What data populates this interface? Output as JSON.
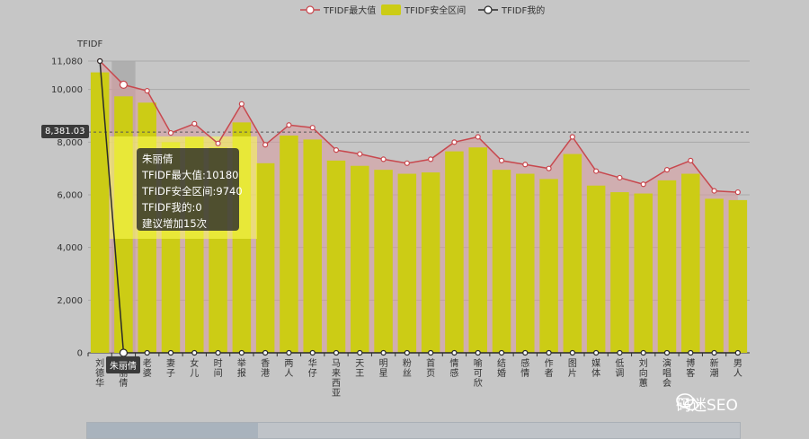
{
  "chart_data": {
    "type": "bar",
    "ylabel": "TFIDF",
    "ylim": [
      0,
      11080
    ],
    "yticks": [
      "0",
      "2,000",
      "4,000",
      "6,000",
      "8,000",
      "10,000",
      "11,080"
    ],
    "ytick_values": [
      0,
      2000,
      4000,
      6000,
      8000,
      10000,
      11080
    ],
    "categories": [
      "刘德华",
      "朱丽倩",
      "老婆",
      "妻子",
      "女儿",
      "时间",
      "举报",
      "香港",
      "两人",
      "华仔",
      "马来西亚",
      "天王",
      "明星",
      "粉丝",
      "首页",
      "情感",
      "喻可欣",
      "结婚",
      "感情",
      "作者",
      "图片",
      "媒体",
      "低调",
      "刘向蕙",
      "演唱会",
      "博客",
      "新潮",
      "男人"
    ],
    "series": [
      {
        "name": "TFIDF最大值",
        "type": "line",
        "color": "#c8484e",
        "values": [
          11080,
          10180,
          9950,
          8350,
          8700,
          7950,
          9450,
          7900,
          8650,
          8550,
          7700,
          7550,
          7350,
          7200,
          7350,
          8000,
          8200,
          7300,
          7150,
          7000,
          8200,
          6900,
          6650,
          6400,
          6950,
          7300,
          6150,
          6100
        ]
      },
      {
        "name": "TFIDF安全区间",
        "type": "bar",
        "color": "#cccc15",
        "values": [
          10650,
          9740,
          9500,
          8000,
          8200,
          7800,
          8750,
          7200,
          8250,
          8100,
          7300,
          7100,
          6950,
          6800,
          6850,
          7650,
          7800,
          6950,
          6800,
          6600,
          7550,
          6350,
          6100,
          6050,
          6550,
          6800,
          5850,
          5800
        ]
      },
      {
        "name": "TFIDF我的",
        "type": "line",
        "color": "#2a2a2a",
        "values": [
          11080,
          0,
          0,
          0,
          0,
          0,
          0,
          0,
          0,
          0,
          0,
          0,
          0,
          0,
          0,
          0,
          0,
          0,
          0,
          0,
          0,
          0,
          0,
          0,
          0,
          0,
          0,
          0
        ]
      }
    ],
    "cursor_value": "8,381.03",
    "cursor_y": 8381.03,
    "highlight_index": 1,
    "legend_position": "top-center"
  },
  "tooltip": {
    "lines": [
      "朱丽倩",
      "TFIDF最大值:10180",
      "TFIDF安全区间:9740",
      "TFIDF我的:0",
      "建议增加15次"
    ]
  },
  "axis_pointer_label": "朱丽倩",
  "watermark": "码迷SEO"
}
